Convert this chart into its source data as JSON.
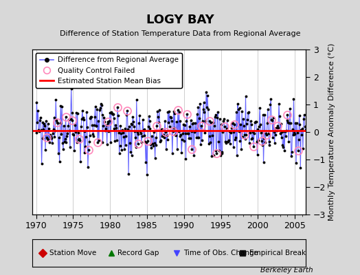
{
  "title": "LOGY BAY",
  "subtitle": "Difference of Station Temperature Data from Regional Average",
  "ylabel": "Monthly Temperature Anomaly Difference (°C)",
  "xlabel_ticks": [
    1970,
    1975,
    1980,
    1985,
    1990,
    1995,
    2000,
    2005
  ],
  "ylim": [
    -3,
    3
  ],
  "xlim": [
    1969.5,
    2006.5
  ],
  "bias_line": 0.05,
  "bias_color": "#ff0000",
  "line_color": "#6666ff",
  "dot_color": "#000000",
  "qc_edge_color": "#ff88bb",
  "background_color": "#d8d8d8",
  "plot_bg_color": "#ffffff",
  "berkeley_earth_label": "Berkeley Earth",
  "legend1_entries": [
    {
      "label": "Difference from Regional Average"
    },
    {
      "label": "Quality Control Failed"
    },
    {
      "label": "Estimated Station Mean Bias"
    }
  ],
  "legend2_entries": [
    {
      "label": "Station Move",
      "color": "#cc0000",
      "marker": "D"
    },
    {
      "label": "Record Gap",
      "color": "#007700",
      "marker": "^"
    },
    {
      "label": "Time of Obs. Change",
      "color": "#4444ff",
      "marker": "v"
    },
    {
      "label": "Empirical Break",
      "color": "#111111",
      "marker": "s"
    }
  ]
}
